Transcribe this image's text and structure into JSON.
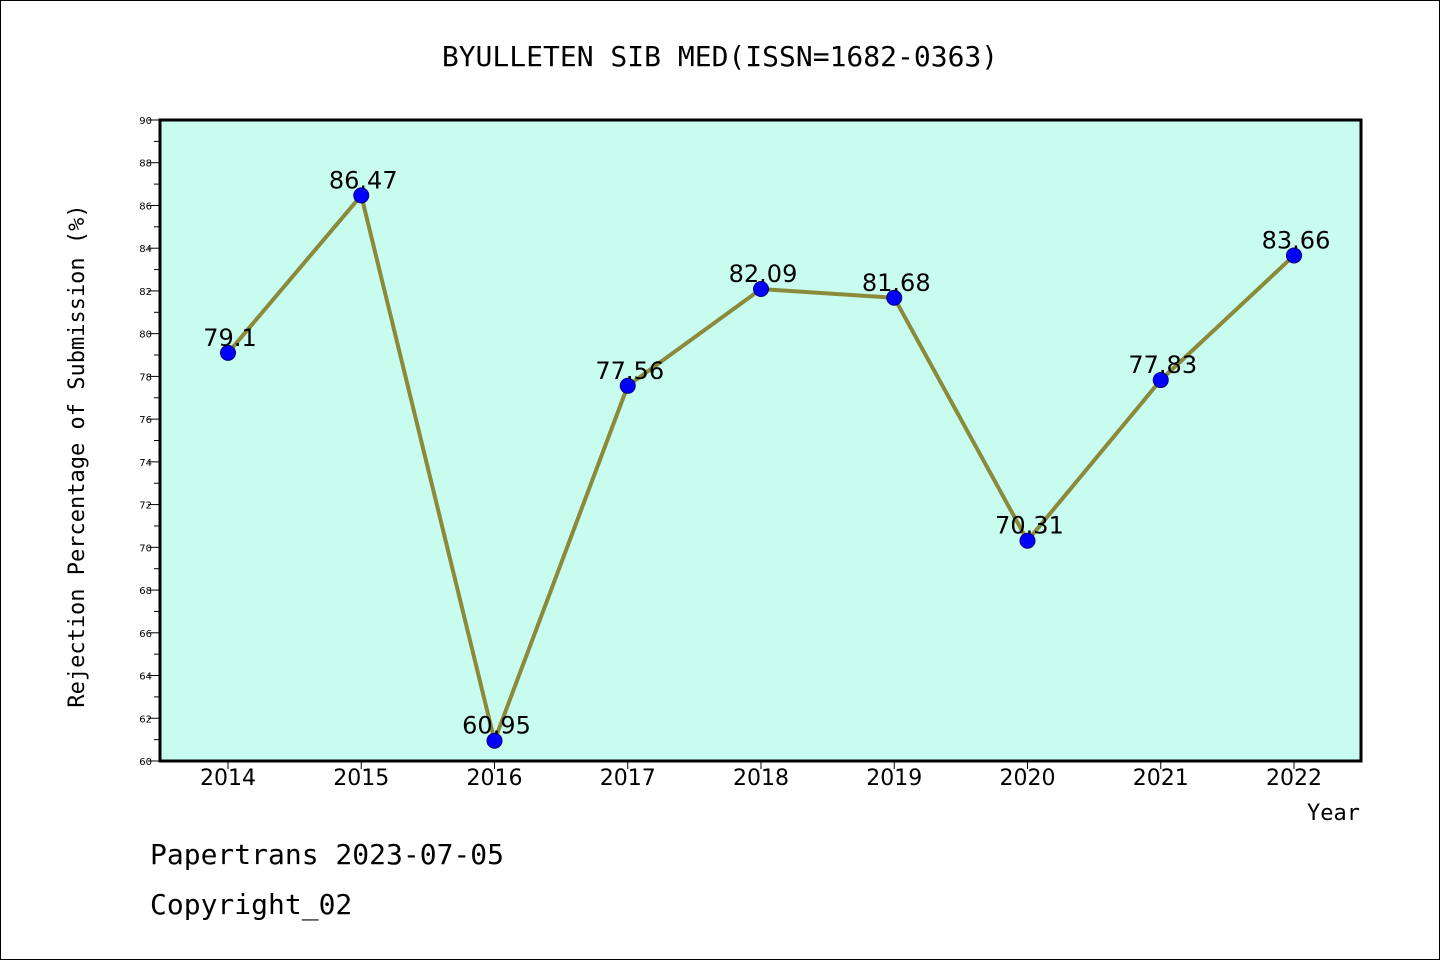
{
  "chart_data": {
    "type": "line",
    "title": "BYULLETEN SIB MED(ISSN=1682-0363)",
    "xlabel": "Year",
    "ylabel": "Rejection Percentage of Submission (%)",
    "categories": [
      "2014",
      "2015",
      "2016",
      "2017",
      "2018",
      "2019",
      "2020",
      "2021",
      "2022"
    ],
    "values": [
      79.1,
      86.47,
      60.95,
      77.56,
      82.09,
      81.68,
      70.31,
      77.83,
      83.66
    ],
    "data_labels": [
      "79.1",
      "86.47",
      "60.95",
      "77.56",
      "82.09",
      "81.68",
      "70.31",
      "77.83",
      "83.66"
    ],
    "ylim": [
      60,
      90
    ],
    "yticks": [
      "60",
      "62",
      "64",
      "66",
      "68",
      "70",
      "72",
      "74",
      "76",
      "78",
      "80",
      "82",
      "84",
      "86",
      "88",
      "90"
    ],
    "grid": false,
    "legend": "none",
    "colors": {
      "plot_background": "#c8fcef",
      "line": "#8b8a3a",
      "marker": "#0000ff"
    }
  },
  "footer": {
    "line1": "Papertrans 2023-07-05",
    "line2": "Copyright_02"
  }
}
